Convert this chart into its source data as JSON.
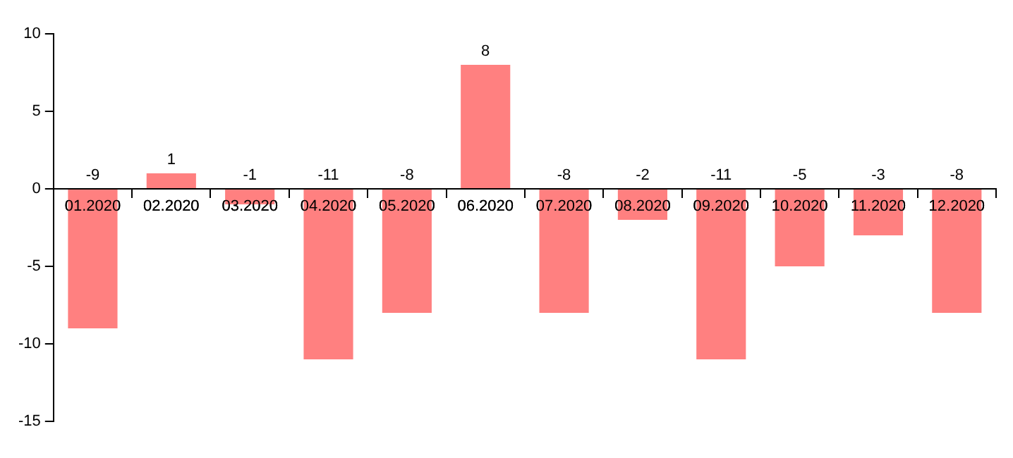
{
  "chart_data": {
    "type": "bar",
    "categories": [
      "01.2020",
      "02.2020",
      "03.2020",
      "04.2020",
      "05.2020",
      "06.2020",
      "07.2020",
      "08.2020",
      "09.2020",
      "10.2020",
      "11.2020",
      "12.2020"
    ],
    "values": [
      -9,
      1,
      -1,
      -11,
      -8,
      8,
      -8,
      -2,
      -11,
      -5,
      -3,
      -8
    ],
    "color": "#ff8080",
    "ylim": [
      -15,
      10
    ],
    "yticks": [
      -15,
      -10,
      -5,
      0,
      5,
      10
    ],
    "grid": false,
    "data_labels": true,
    "legend": false
  }
}
